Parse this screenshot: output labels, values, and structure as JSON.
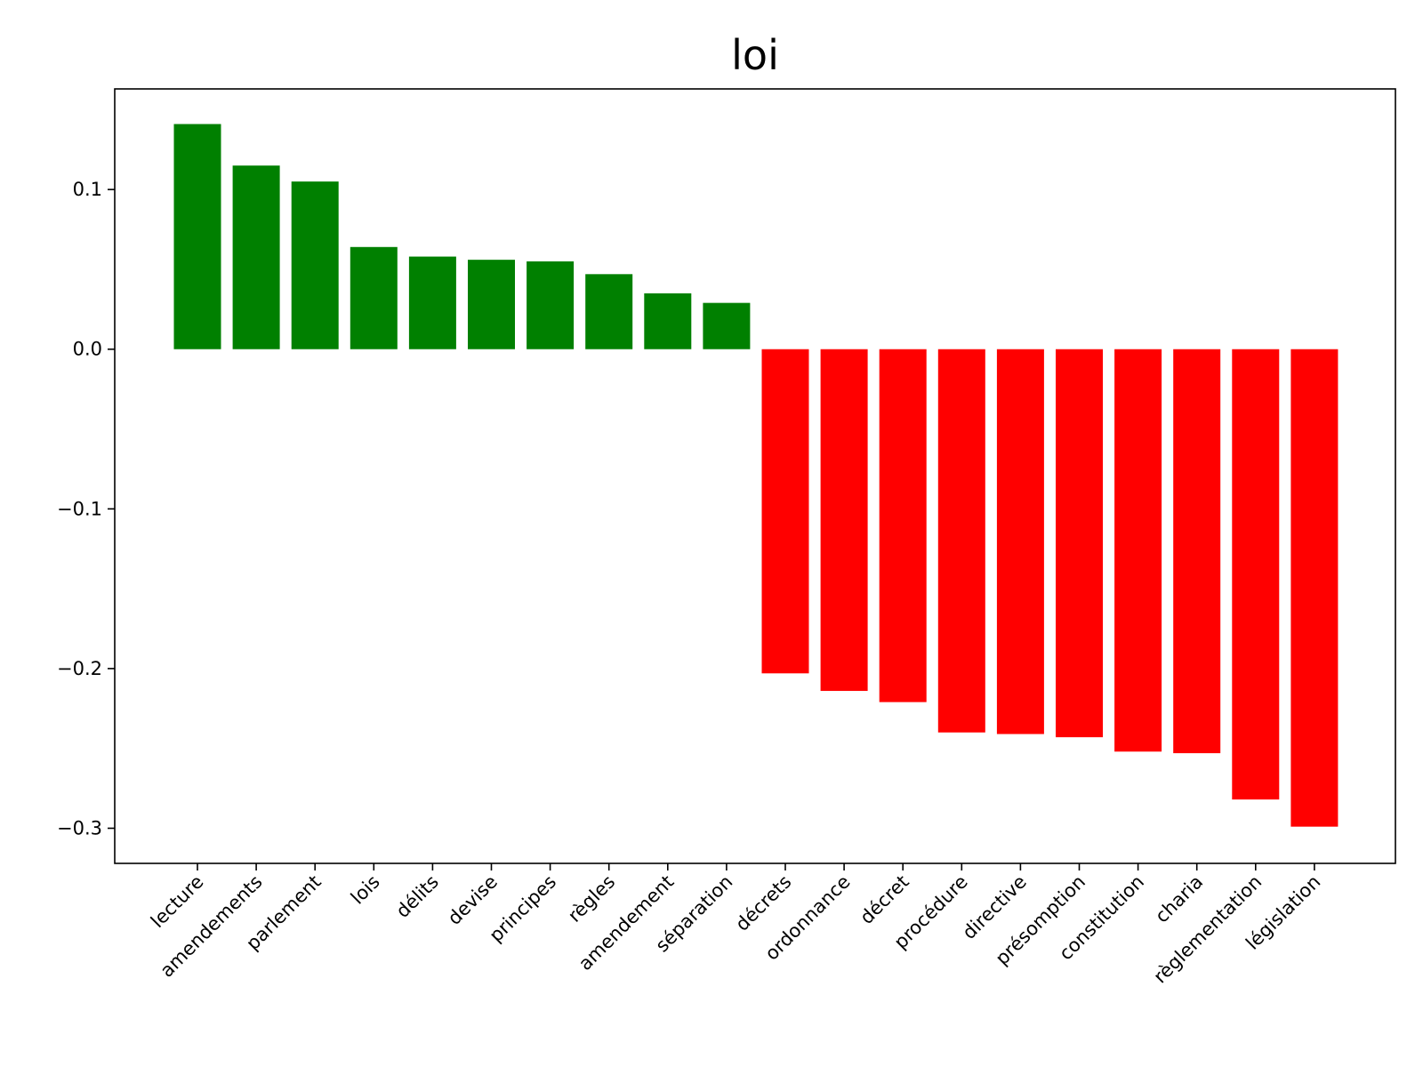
{
  "chart_data": {
    "type": "bar",
    "title": "loi",
    "xlabel": "",
    "ylabel": "",
    "ylim": [
      -0.322,
      0.163
    ],
    "yticks": [
      0.1,
      0.0,
      -0.1,
      -0.2,
      -0.3
    ],
    "ytick_labels": [
      "0.1",
      "0.0",
      "−0.1",
      "−0.2",
      "−0.3"
    ],
    "grid": false,
    "positive_color": "#008000",
    "negative_color": "#ff0000",
    "bars": [
      {
        "label": "lecture",
        "value": 0.141
      },
      {
        "label": "amendements",
        "value": 0.115
      },
      {
        "label": "parlement",
        "value": 0.105
      },
      {
        "label": "lois",
        "value": 0.064
      },
      {
        "label": "délits",
        "value": 0.058
      },
      {
        "label": "devise",
        "value": 0.056
      },
      {
        "label": "principes",
        "value": 0.055
      },
      {
        "label": "règles",
        "value": 0.047
      },
      {
        "label": "amendement",
        "value": 0.035
      },
      {
        "label": "séparation",
        "value": 0.029
      },
      {
        "label": "décrets",
        "value": -0.203
      },
      {
        "label": "ordonnance",
        "value": -0.214
      },
      {
        "label": "décret",
        "value": -0.221
      },
      {
        "label": "procédure",
        "value": -0.24
      },
      {
        "label": "directive",
        "value": -0.241
      },
      {
        "label": "présomption",
        "value": -0.243
      },
      {
        "label": "constitution",
        "value": -0.252
      },
      {
        "label": "charia",
        "value": -0.253
      },
      {
        "label": "règlementation",
        "value": -0.282
      },
      {
        "label": "législation",
        "value": -0.299
      }
    ]
  }
}
